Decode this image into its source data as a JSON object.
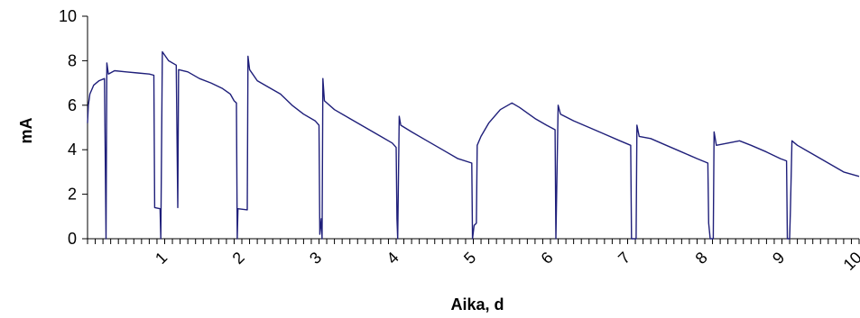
{
  "chart_data": {
    "type": "line",
    "title": "",
    "xlabel": "Aika, d",
    "ylabel": "mA",
    "xlim": [
      0,
      10
    ],
    "ylim": [
      0,
      10
    ],
    "y_ticks": [
      0,
      2,
      4,
      6,
      8,
      10
    ],
    "x_tick_labels": [
      1,
      2,
      3,
      4,
      5,
      6,
      7,
      8,
      9,
      10
    ],
    "x_minor_tick_step": 0.1,
    "grid": false,
    "legend": "none",
    "line_color": "#1f1f7a",
    "series": [
      {
        "values": [
          [
            0.0,
            5.2
          ],
          [
            0.01,
            6.0
          ],
          [
            0.03,
            6.5
          ],
          [
            0.08,
            6.9
          ],
          [
            0.15,
            7.1
          ],
          [
            0.22,
            7.2
          ],
          [
            0.24,
            0.0
          ],
          [
            0.25,
            7.9
          ],
          [
            0.27,
            7.4
          ],
          [
            0.35,
            7.55
          ],
          [
            0.5,
            7.5
          ],
          [
            0.65,
            7.45
          ],
          [
            0.8,
            7.4
          ],
          [
            0.86,
            7.35
          ],
          [
            0.87,
            1.4
          ],
          [
            0.94,
            1.35
          ],
          [
            0.95,
            0.0
          ],
          [
            0.97,
            8.4
          ],
          [
            1.05,
            8.0
          ],
          [
            1.15,
            7.8
          ],
          [
            1.17,
            1.4
          ],
          [
            1.18,
            7.6
          ],
          [
            1.3,
            7.5
          ],
          [
            1.45,
            7.2
          ],
          [
            1.6,
            7.0
          ],
          [
            1.75,
            6.75
          ],
          [
            1.85,
            6.5
          ],
          [
            1.9,
            6.2
          ],
          [
            1.93,
            6.1
          ],
          [
            1.94,
            0.0
          ],
          [
            1.95,
            1.35
          ],
          [
            2.07,
            1.3
          ],
          [
            2.08,
            8.2
          ],
          [
            2.1,
            7.6
          ],
          [
            2.2,
            7.1
          ],
          [
            2.35,
            6.8
          ],
          [
            2.5,
            6.5
          ],
          [
            2.65,
            6.0
          ],
          [
            2.8,
            5.6
          ],
          [
            2.95,
            5.3
          ],
          [
            3.0,
            5.1
          ],
          [
            3.01,
            0.2
          ],
          [
            3.03,
            0.9
          ],
          [
            3.04,
            0.0
          ],
          [
            3.05,
            7.2
          ],
          [
            3.07,
            6.2
          ],
          [
            3.2,
            5.8
          ],
          [
            3.4,
            5.4
          ],
          [
            3.6,
            5.0
          ],
          [
            3.8,
            4.6
          ],
          [
            3.95,
            4.3
          ],
          [
            4.0,
            4.1
          ],
          [
            4.01,
            0.9
          ],
          [
            4.02,
            0.0
          ],
          [
            4.04,
            5.5
          ],
          [
            4.06,
            5.1
          ],
          [
            4.2,
            4.8
          ],
          [
            4.4,
            4.4
          ],
          [
            4.6,
            4.0
          ],
          [
            4.8,
            3.6
          ],
          [
            4.98,
            3.4
          ],
          [
            4.99,
            0.0
          ],
          [
            5.01,
            0.6
          ],
          [
            5.04,
            0.7
          ],
          [
            5.05,
            4.2
          ],
          [
            5.1,
            4.6
          ],
          [
            5.2,
            5.2
          ],
          [
            5.35,
            5.8
          ],
          [
            5.5,
            6.1
          ],
          [
            5.6,
            5.9
          ],
          [
            5.8,
            5.4
          ],
          [
            5.95,
            5.1
          ],
          [
            6.06,
            4.9
          ],
          [
            6.07,
            0.0
          ],
          [
            6.1,
            6.0
          ],
          [
            6.13,
            5.6
          ],
          [
            6.3,
            5.3
          ],
          [
            6.5,
            5.0
          ],
          [
            6.7,
            4.7
          ],
          [
            6.9,
            4.4
          ],
          [
            7.04,
            4.2
          ],
          [
            7.05,
            0.0
          ],
          [
            7.11,
            0.0
          ],
          [
            7.12,
            5.1
          ],
          [
            7.15,
            4.6
          ],
          [
            7.3,
            4.5
          ],
          [
            7.5,
            4.2
          ],
          [
            7.7,
            3.9
          ],
          [
            7.9,
            3.6
          ],
          [
            8.04,
            3.4
          ],
          [
            8.05,
            0.7
          ],
          [
            8.07,
            0.0
          ],
          [
            8.11,
            0.0
          ],
          [
            8.12,
            4.8
          ],
          [
            8.15,
            4.2
          ],
          [
            8.3,
            4.3
          ],
          [
            8.45,
            4.4
          ],
          [
            8.6,
            4.2
          ],
          [
            8.8,
            3.9
          ],
          [
            8.98,
            3.6
          ],
          [
            9.06,
            3.5
          ],
          [
            9.07,
            0.0
          ],
          [
            9.1,
            0.0
          ],
          [
            9.11,
            1.3
          ],
          [
            9.13,
            4.4
          ],
          [
            9.2,
            4.2
          ],
          [
            9.4,
            3.8
          ],
          [
            9.6,
            3.4
          ],
          [
            9.8,
            3.0
          ],
          [
            10.0,
            2.8
          ]
        ]
      }
    ]
  }
}
